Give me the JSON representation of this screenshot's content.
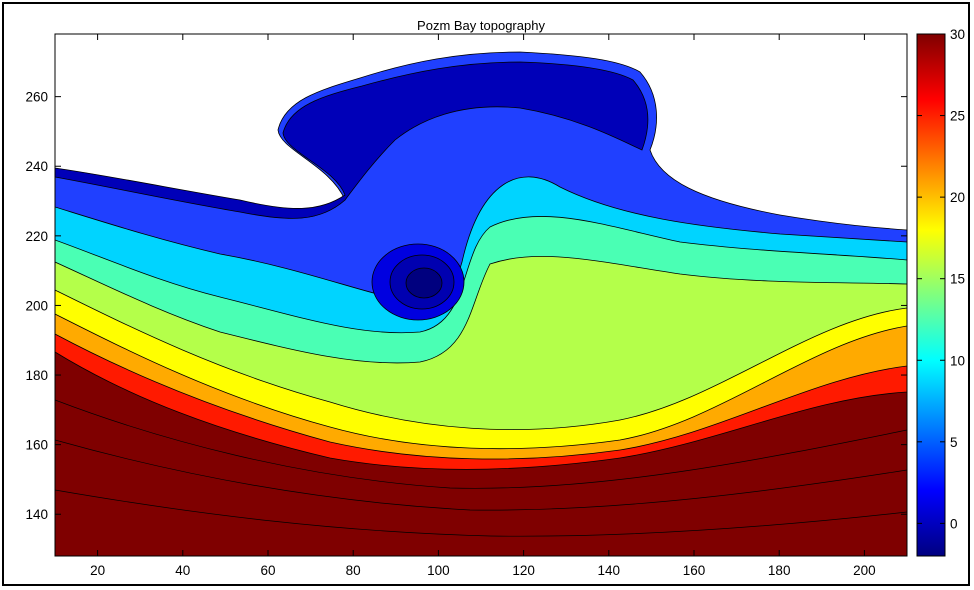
{
  "chart_data": {
    "type": "contourf",
    "title": "Pozm Bay topography",
    "xlabel": "",
    "ylabel": "",
    "xlim": [
      10,
      210
    ],
    "ylim": [
      128,
      278
    ],
    "x_ticks": [
      20,
      40,
      60,
      80,
      100,
      120,
      140,
      160,
      180,
      200
    ],
    "y_ticks": [
      140,
      160,
      180,
      200,
      220,
      240,
      260
    ],
    "colorbar": {
      "colormap": "jet",
      "range": [
        -2,
        30
      ],
      "ticks": [
        0,
        5,
        10,
        15,
        20,
        25,
        30
      ]
    },
    "contour_levels": [
      0,
      2,
      4,
      6,
      8,
      10,
      12,
      14,
      16,
      18,
      20,
      22,
      24,
      26,
      28,
      30
    ],
    "grid": false,
    "legend": "none"
  }
}
